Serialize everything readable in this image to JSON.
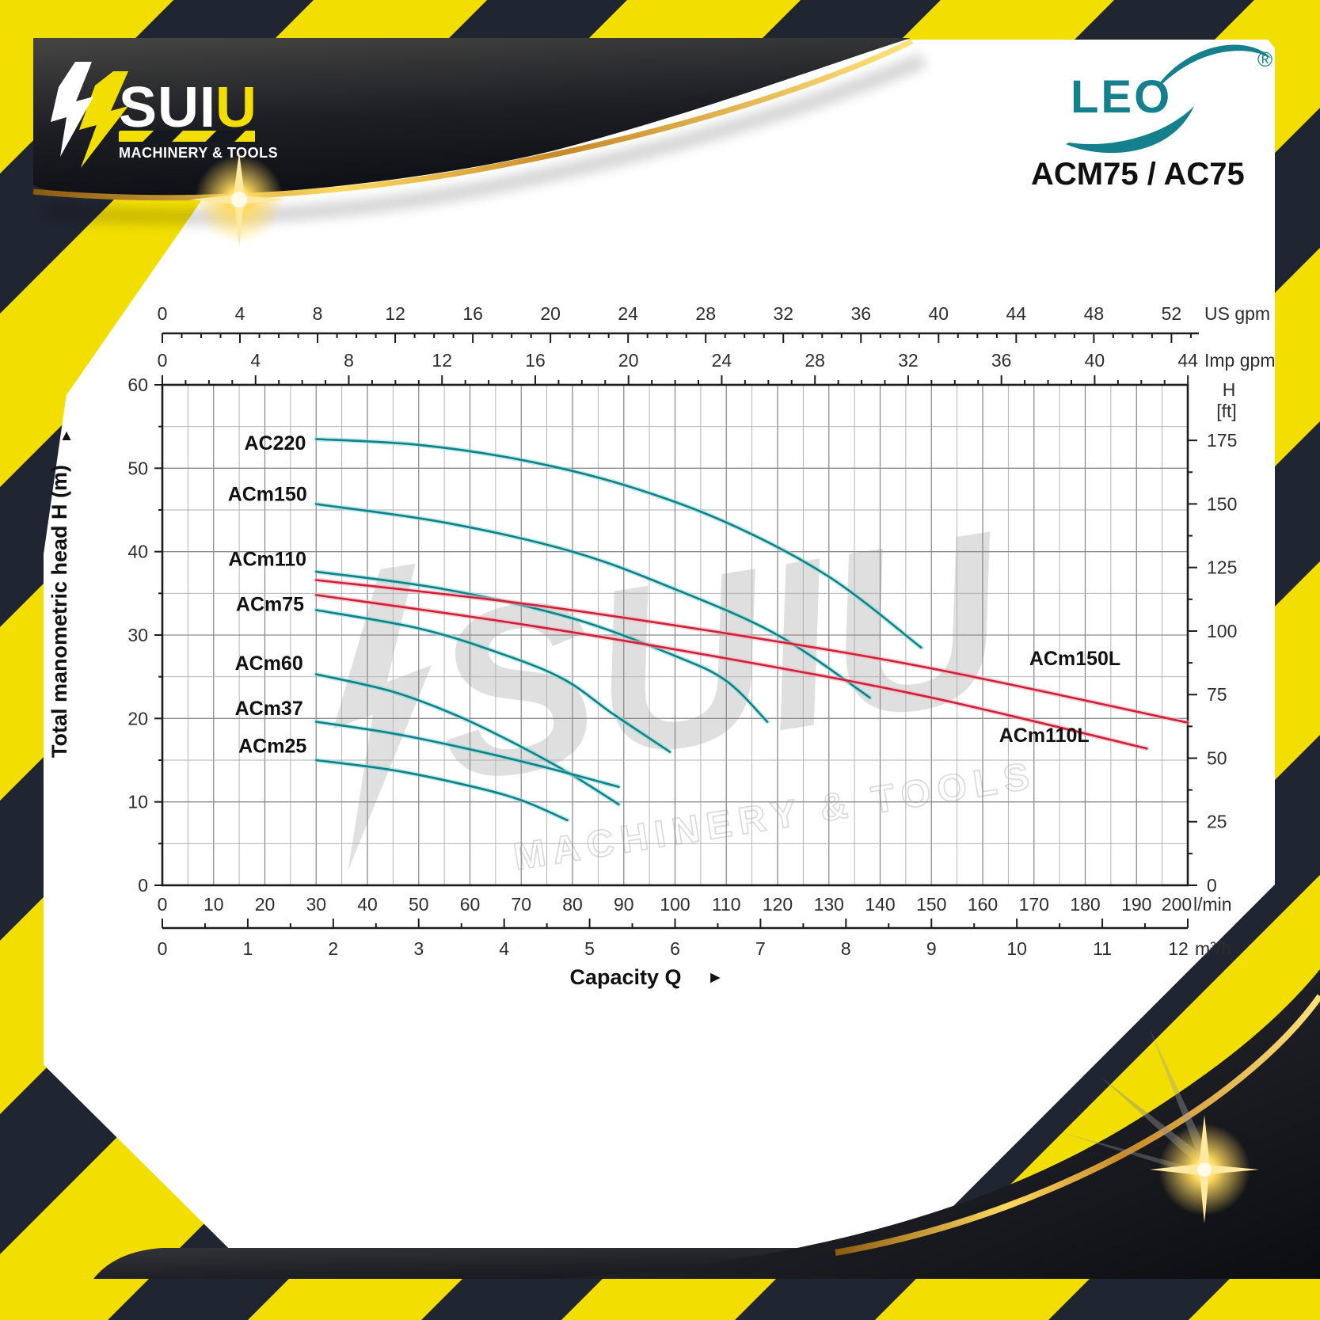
{
  "branding": {
    "leo": {
      "name": "LEO",
      "registered": "®",
      "model": "ACM75 / AC75",
      "teal": "#14808E"
    },
    "suiu": {
      "word_main": "SUI",
      "word_accent": "U",
      "tagline": "MACHINERY & TOOLS",
      "yellow": "#F2DE00",
      "dark": "#1F2531"
    }
  },
  "watermark": {
    "word": "SUIU",
    "tagline": "MACHINERY & TOOLS",
    "gray": "#c6c6c6"
  },
  "frame": {
    "caution_yellow": "#F2DE00",
    "caution_dark": "#1F2531",
    "gold": "#E8B33C"
  },
  "chart_data": {
    "type": "line",
    "xlabel": "Capacity Q",
    "xlabel_arrow": "►",
    "y_title": "Total manometric head H (m)",
    "y_title_arrow": "▲",
    "grid": true,
    "x_axes": [
      {
        "id": "us_gpm",
        "unit": "US gpm",
        "ticks": [
          0,
          4,
          8,
          12,
          16,
          20,
          24,
          28,
          32,
          36,
          40,
          44,
          48,
          52
        ],
        "minor_step": 1,
        "minor_max": 53,
        "lmin_per_unit": 3.785
      },
      {
        "id": "imp_gpm",
        "unit": "Imp gpm",
        "ticks": [
          0,
          4,
          8,
          12,
          16,
          20,
          24,
          28,
          32,
          36,
          40,
          44
        ],
        "minor_step": 1,
        "minor_max": 44,
        "lmin_per_unit": 4.546
      },
      {
        "id": "lmin",
        "unit": "l/min",
        "ticks": [
          0,
          10,
          20,
          30,
          40,
          50,
          60,
          70,
          80,
          90,
          100,
          110,
          120,
          130,
          140,
          150,
          160,
          170,
          180,
          190,
          200
        ],
        "range": [
          0,
          200
        ]
      },
      {
        "id": "m3h",
        "unit": "m³/h",
        "ticks": [
          0,
          1,
          2,
          3,
          4,
          5,
          6,
          7,
          8,
          9,
          10,
          11,
          12
        ],
        "minor_step": 0.5,
        "lmin_per_unit": 16.6667
      }
    ],
    "y_axes": [
      {
        "id": "head_m",
        "unit": "m",
        "ticks": [
          0,
          10,
          20,
          30,
          40,
          50,
          60
        ],
        "minor_step": 5,
        "range": [
          0,
          60
        ]
      },
      {
        "id": "head_ft",
        "unit_top": "H",
        "unit_bottom": "[ft]",
        "ticks": [
          0,
          25,
          50,
          75,
          100,
          125,
          150,
          175
        ],
        "minor_step": 12.5,
        "m_per_ft": 0.3048
      }
    ],
    "series": [
      {
        "name": "AC220",
        "color": "teal",
        "label_at": [
          22,
          52.2
        ],
        "points": [
          [
            30,
            53.5
          ],
          [
            50,
            52.8
          ],
          [
            70,
            51.0
          ],
          [
            90,
            48.0
          ],
          [
            110,
            43.5
          ],
          [
            130,
            37.0
          ],
          [
            148,
            28.5
          ]
        ]
      },
      {
        "name": "ACm150",
        "color": "teal",
        "label_at": [
          20.5,
          46.1
        ],
        "points": [
          [
            30,
            45.7
          ],
          [
            55,
            43.5
          ],
          [
            80,
            40.0
          ],
          [
            100,
            35.5
          ],
          [
            120,
            30.0
          ],
          [
            138,
            22.5
          ]
        ]
      },
      {
        "name": "ACm110",
        "color": "teal",
        "label_at": [
          20.5,
          38.3
        ],
        "points": [
          [
            30,
            37.6
          ],
          [
            55,
            35.5
          ],
          [
            80,
            32.0
          ],
          [
            100,
            27.5
          ],
          [
            110,
            24.5
          ],
          [
            118,
            19.6
          ]
        ]
      },
      {
        "name": "ACm75",
        "color": "teal",
        "label_at": [
          21,
          32.9
        ],
        "points": [
          [
            30,
            33.0
          ],
          [
            50,
            30.8
          ],
          [
            65,
            28.0
          ],
          [
            78,
            24.8
          ],
          [
            88,
            20.5
          ],
          [
            99,
            16.0
          ]
        ]
      },
      {
        "name": "ACm60",
        "color": "teal",
        "label_at": [
          20.8,
          25.8
        ],
        "points": [
          [
            30,
            25.3
          ],
          [
            45,
            23.2
          ],
          [
            58,
            20.2
          ],
          [
            70,
            16.6
          ],
          [
            80,
            13.2
          ],
          [
            89,
            9.7
          ]
        ]
      },
      {
        "name": "ACm37",
        "color": "teal",
        "label_at": [
          20.8,
          20.4
        ],
        "points": [
          [
            30,
            19.6
          ],
          [
            45,
            18.2
          ],
          [
            60,
            16.3
          ],
          [
            75,
            14.1
          ],
          [
            89,
            11.8
          ]
        ]
      },
      {
        "name": "ACm25",
        "color": "teal",
        "label_at": [
          21.5,
          15.9
        ],
        "points": [
          [
            30,
            15.0
          ],
          [
            45,
            13.8
          ],
          [
            60,
            11.9
          ],
          [
            70,
            10.2
          ],
          [
            79,
            7.8
          ]
        ]
      },
      {
        "name": "ACm150L",
        "color": "red",
        "label_at": [
          178,
          26.4
        ],
        "points": [
          [
            30,
            36.6
          ],
          [
            70,
            33.8
          ],
          [
            110,
            30.2
          ],
          [
            150,
            26.0
          ],
          [
            200,
            19.5
          ]
        ]
      },
      {
        "name": "ACm110L",
        "color": "red",
        "label_at": [
          172,
          17.2
        ],
        "points": [
          [
            30,
            34.8
          ],
          [
            70,
            31.3
          ],
          [
            110,
            27.2
          ],
          [
            150,
            22.5
          ],
          [
            192,
            16.4
          ]
        ]
      }
    ],
    "palette": {
      "teal_core": "#0E8287",
      "teal_halo": "#8FD8D8",
      "red_core": "#CE2038",
      "red_halo": "#F4A9B4",
      "grid_minor": "#ACACAC",
      "grid_major": "#8C8C8C",
      "axis": "#1c1c1c"
    }
  }
}
